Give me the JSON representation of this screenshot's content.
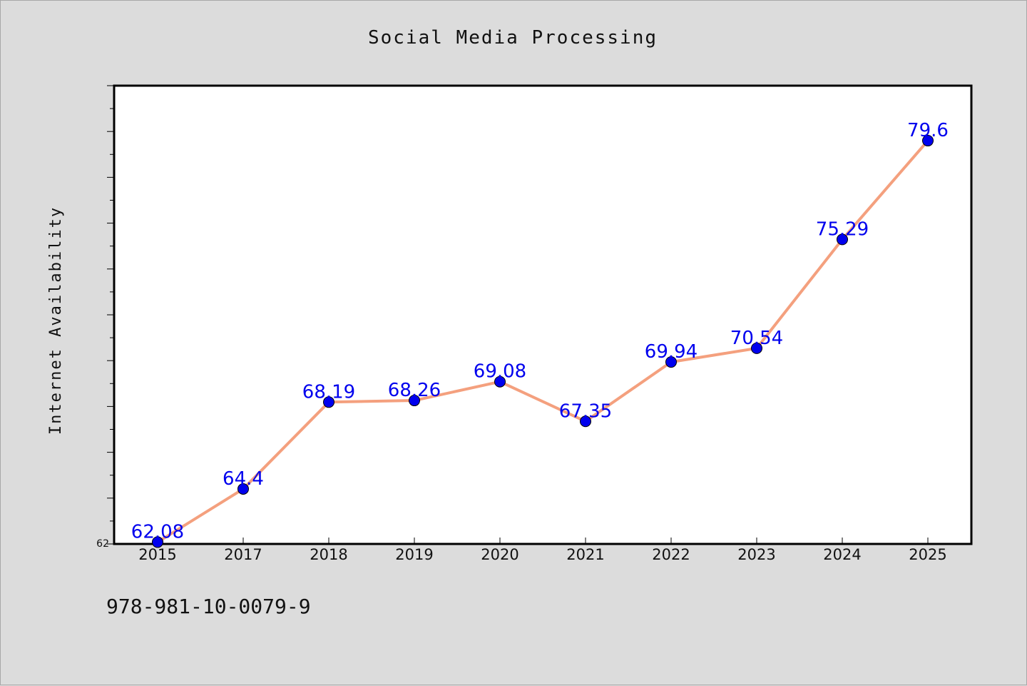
{
  "chart_data": {
    "type": "line",
    "title": "Social Media Processing",
    "xlabel": "",
    "ylabel": "Internet Availability",
    "categories": [
      "2015",
      "2017",
      "2018",
      "2019",
      "2020",
      "2021",
      "2022",
      "2023",
      "2024",
      "2025"
    ],
    "series": [
      {
        "values": [
          62.08,
          64.4,
          68.19,
          68.26,
          69.08,
          67.35,
          69.94,
          70.54,
          75.29,
          79.6
        ]
      }
    ],
    "data_labels": [
      "62.08",
      "64.4",
      "68.19",
      "68.26",
      "69.08",
      "67.35",
      "69.94",
      "70.54",
      "75.29",
      "79.6"
    ],
    "y_tick_labels": [
      "62"
    ],
    "ylim": [
      62,
      82
    ],
    "grid": false,
    "colors": {
      "line": "#f4a07e",
      "marker": "#0000ee",
      "data_label": "#0000ee"
    }
  },
  "footnote": "978-981-10-0079-9"
}
